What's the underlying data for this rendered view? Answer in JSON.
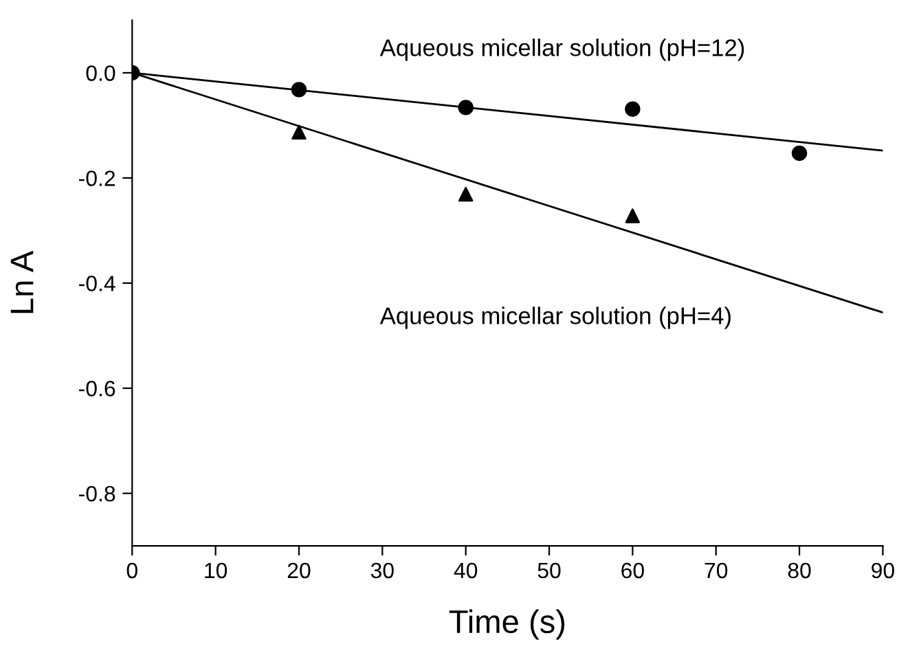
{
  "chart_data": {
    "type": "scatter",
    "xlabel": "Time (s)",
    "ylabel": "Ln A",
    "series": [
      {
        "color": "#000000",
        "marker": "circle",
        "x": [
          0,
          20,
          40,
          60,
          80
        ],
        "values": [
          0.0,
          -0.032,
          -0.066,
          -0.069,
          -0.153
        ]
      },
      {
        "color": "#000000",
        "marker": "triangle",
        "x": [
          20,
          40,
          60
        ],
        "values": [
          -0.113,
          -0.231,
          -0.272
        ]
      },
      {
        "type": "line",
        "color": "#000000",
        "marker": "none",
        "x": [
          0,
          90
        ],
        "values": [
          0.0,
          -0.148
        ]
      },
      {
        "type": "line",
        "color": "#000000",
        "marker": "none",
        "x": [
          0,
          90
        ],
        "values": [
          0.0,
          -0.456
        ]
      }
    ],
    "annotations": [
      "Aqueous micellar solution (pH=12)",
      "Aqueous micellar solution (pH=4)"
    ],
    "xlim": [
      0,
      90
    ],
    "xticks": [
      0,
      10,
      20,
      30,
      40,
      50,
      60,
      70,
      80,
      90
    ],
    "ylim": [
      -0.9,
      0.1
    ],
    "yticks": [
      {
        "value": 0.0,
        "label": "0.0"
      },
      -0.2,
      -0.4,
      -0.6,
      -0.8
    ],
    "grid": false,
    "legend": false
  }
}
